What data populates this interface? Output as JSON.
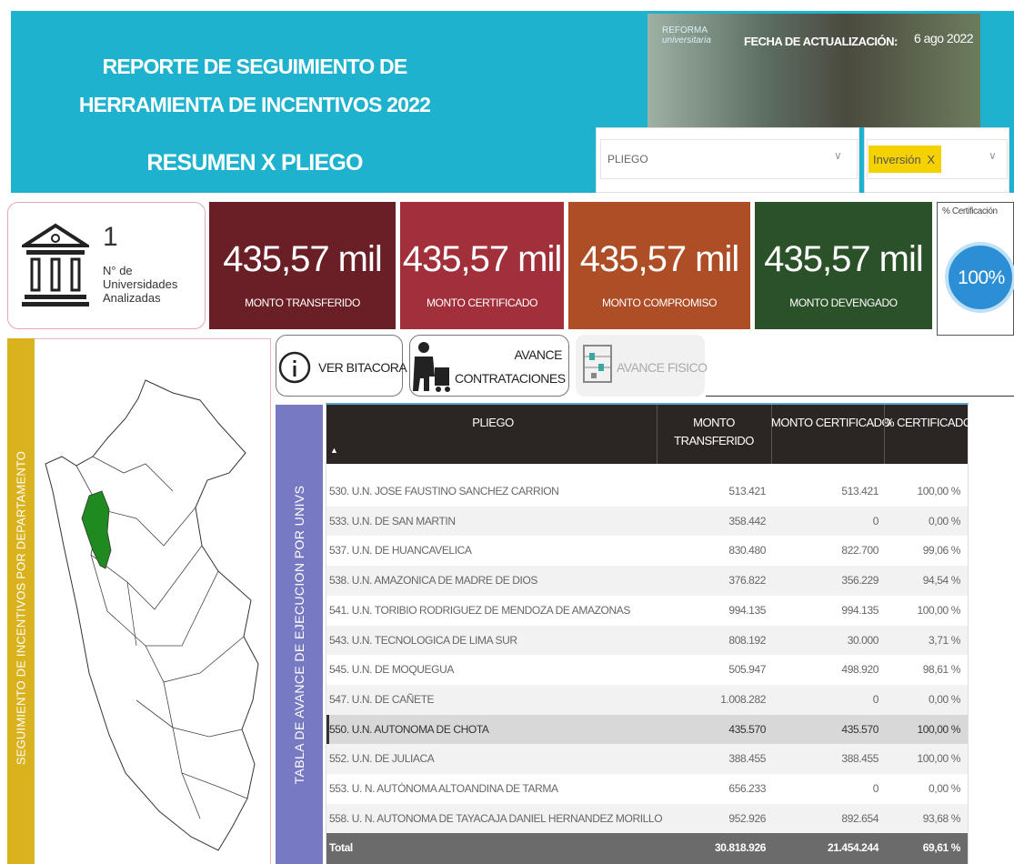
{
  "header": {
    "title_line1": "REPORTE DE SEGUIMIENTO DE",
    "title_line2": "HERRAMIENTA DE INCENTIVOS 2022",
    "subtitle": "RESUMEN X PLIEGO",
    "logo_line1": "REFORMA",
    "logo_line2": "universitaria",
    "update_label": "FECHA DE ACTUALIZACIÓN:",
    "update_date": "6 ago 2022"
  },
  "filters": {
    "pliego": "PLIEGO",
    "tag": "Inversión",
    "tag_close": "X"
  },
  "universities": {
    "count": "1",
    "label_line1": "N° de",
    "label_line2": "Universidades",
    "label_line3": "Analizadas"
  },
  "kpis": [
    {
      "value": "435,57 mil",
      "label": "MONTO TRANSFERIDO",
      "color": "#6a1f26"
    },
    {
      "value": "435,57 mil",
      "label": "MONTO CERTIFICADO",
      "color": "#a1303b"
    },
    {
      "value": "435,57 mil",
      "label": "MONTO COMPROMISO",
      "color": "#ad4e27"
    },
    {
      "value": "435,57 mil",
      "label": "MONTO DEVENGADO",
      "color": "#2a5127"
    }
  ],
  "gauge": {
    "title": "% Certificación",
    "value": "100%"
  },
  "side_panel": {
    "label": "SEGUIMIENTO DE INCENTIVOS POR DEPARTAMENTO"
  },
  "buttons": {
    "bitacora": "VER BITACORA",
    "contrataciones_line1": "AVANCE",
    "contrataciones_line2": "CONTRATACIONES",
    "fisico": "AVANCE FISICO"
  },
  "table": {
    "side_label": "TABLA DE AVANCE DE EJECUCION POR UNIVS",
    "headers": [
      "PLIEGO",
      "MONTO TRANSFERIDO",
      "MONTO CERTIFICADO",
      "% CERTIFICADO"
    ],
    "selected_row": 8,
    "rows": [
      [
        "530. U.N. JOSE FAUSTINO SANCHEZ CARRION",
        "513.421",
        "513.421",
        "100,00 %"
      ],
      [
        "533. U.N. DE SAN MARTIN",
        "358.442",
        "0",
        "0,00 %"
      ],
      [
        "537. U.N. DE HUANCAVELICA",
        "830.480",
        "822.700",
        "99,06 %"
      ],
      [
        "538. U.N. AMAZONICA DE MADRE DE DIOS",
        "376.822",
        "356.229",
        "94,54 %"
      ],
      [
        "541. U.N. TORIBIO RODRIGUEZ DE MENDOZA DE AMAZONAS",
        "994.135",
        "994.135",
        "100,00 %"
      ],
      [
        "543. U.N. TECNOLOGICA DE LIMA SUR",
        "808.192",
        "30.000",
        "3,71 %"
      ],
      [
        "545. U.N. DE MOQUEGUA",
        "505.947",
        "498.920",
        "98,61 %"
      ],
      [
        "547. U.N. DE CAÑETE",
        "1.008.282",
        "0",
        "0,00 %"
      ],
      [
        "550. U.N. AUTONOMA DE CHOTA",
        "435.570",
        "435.570",
        "100,00 %"
      ],
      [
        "552. U.N. DE JULIACA",
        "388.455",
        "388.455",
        "100,00 %"
      ],
      [
        "553. U. N. AUTÓNOMA ALTOANDINA DE TARMA",
        "656.233",
        "0",
        "0,00 %"
      ],
      [
        "558. U. N. AUTONOMA DE TAYACAJA DANIEL HERNANDEZ MORILLO",
        "952.926",
        "892.654",
        "93,68 %"
      ]
    ],
    "total": [
      "Total",
      "30.818.926",
      "21.454.244",
      "69,61 %"
    ]
  }
}
